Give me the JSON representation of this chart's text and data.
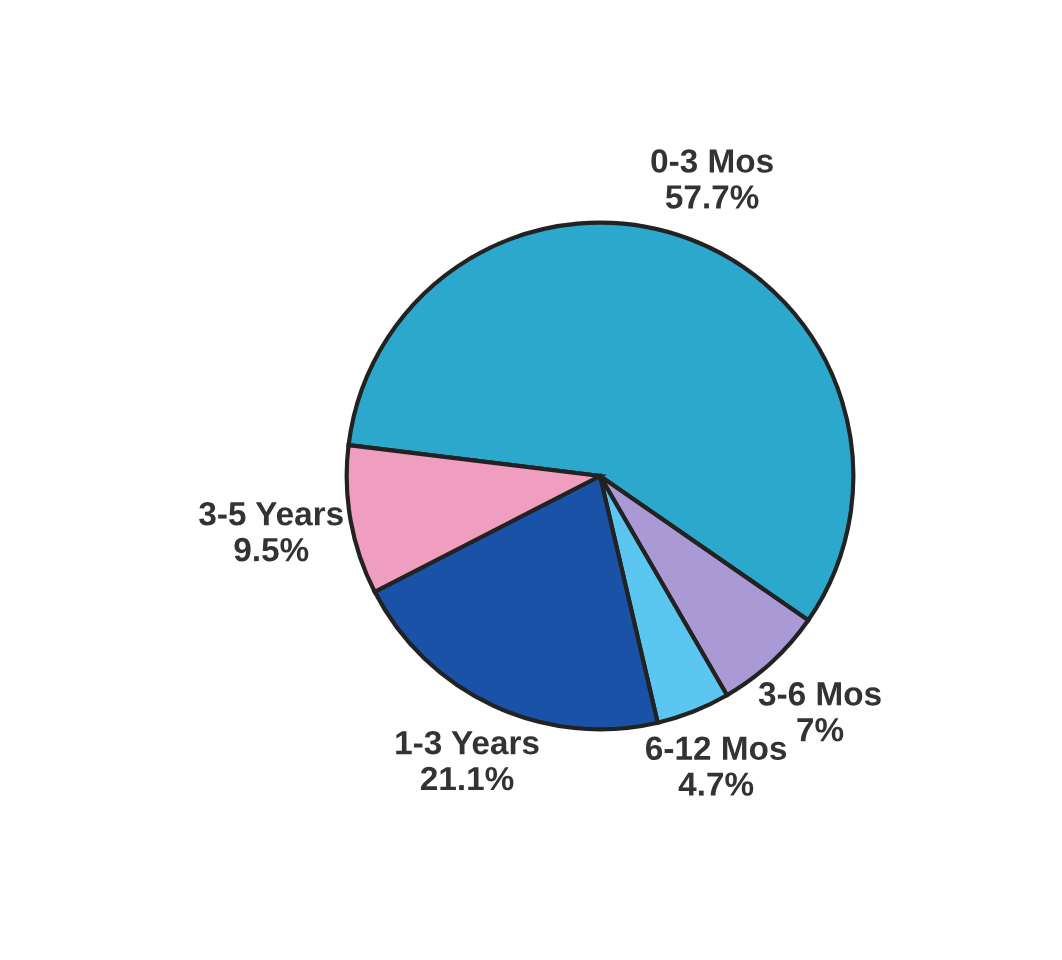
{
  "chart_data": {
    "type": "pie",
    "categories": [
      "0-3 Mos",
      "3-6 Mos",
      "6-12 Mos",
      "1-3 Years",
      "3-5 Years"
    ],
    "values": [
      57.7,
      7,
      4.7,
      21.1,
      9.5
    ],
    "value_labels": [
      "57.7%",
      "7%",
      "4.7%",
      "21.1%",
      "9.5%"
    ],
    "colors": [
      "#2ba8cc",
      "#a99ad6",
      "#5bc6ef",
      "#1a52a8",
      "#ef9ec0"
    ],
    "legend": false
  }
}
